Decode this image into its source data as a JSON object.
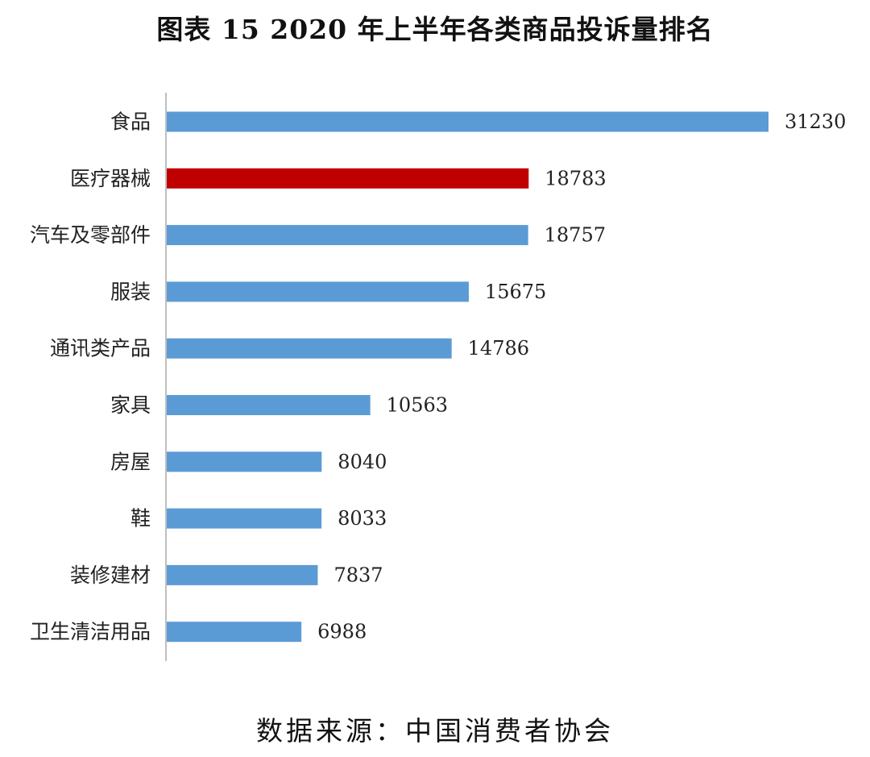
{
  "chart_data": {
    "type": "bar",
    "orientation": "horizontal",
    "title": "图表 15   2020 年上半年各类商品投诉量排名",
    "categories": [
      "食品",
      "医疗器械",
      "汽车及零部件",
      "服装",
      "通讯类产品",
      "家具",
      "房屋",
      "鞋",
      "装修建材",
      "卫生清洁用品"
    ],
    "values": [
      31230,
      18783,
      18757,
      15675,
      14786,
      10563,
      8040,
      8033,
      7837,
      6988
    ],
    "value_labels": [
      "31230",
      "18783",
      "18757",
      "15675",
      "14786",
      "10563",
      "8040",
      "8033",
      "7837",
      "6988"
    ],
    "highlight_index": 1,
    "xlim": [
      0,
      31230
    ],
    "grid": false,
    "legend": "none",
    "colors": {
      "bar": "#5B9BD5",
      "highlight": "#C00000",
      "axis": "#BFBFBF"
    }
  },
  "source_note": "数据来源：中国消费者协会"
}
